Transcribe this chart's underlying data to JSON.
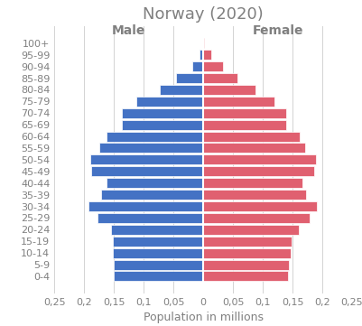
{
  "title": "Norway (2020)",
  "xlabel": "Population in millions",
  "male_label": "Male",
  "female_label": "Female",
  "age_groups": [
    "0-4",
    "5-9",
    "10-14",
    "15-19",
    "20-24",
    "25-29",
    "30-34",
    "35-39",
    "40-44",
    "45-49",
    "50-54",
    "55-59",
    "60-64",
    "65-69",
    "70-74",
    "75-79",
    "80-84",
    "85-89",
    "90-94",
    "95-99",
    "100+"
  ],
  "male_values": [
    0.15,
    0.151,
    0.152,
    0.152,
    0.155,
    0.177,
    0.193,
    0.172,
    0.163,
    0.188,
    0.19,
    0.174,
    0.162,
    0.137,
    0.136,
    0.112,
    0.073,
    0.046,
    0.019,
    0.007,
    0.001
  ],
  "female_values": [
    0.143,
    0.144,
    0.147,
    0.149,
    0.16,
    0.179,
    0.191,
    0.173,
    0.167,
    0.187,
    0.189,
    0.171,
    0.162,
    0.14,
    0.139,
    0.12,
    0.088,
    0.058,
    0.033,
    0.013,
    0.002
  ],
  "male_color": "#4472C4",
  "female_color": "#E06070",
  "background_color": "#FFFFFF",
  "xlim": 0.25,
  "title_fontsize": 13,
  "label_fontsize": 9,
  "tick_fontsize": 8,
  "tick_vals": [
    -0.25,
    -0.2,
    -0.15,
    -0.1,
    -0.05,
    0,
    0.05,
    0.1,
    0.15,
    0.2,
    0.25
  ],
  "tick_labels": [
    "0,25",
    "0,2",
    "0,15",
    "0,1",
    "0,05",
    "0",
    "0,05",
    "0,1",
    "0,15",
    "0,2",
    "0,25"
  ]
}
